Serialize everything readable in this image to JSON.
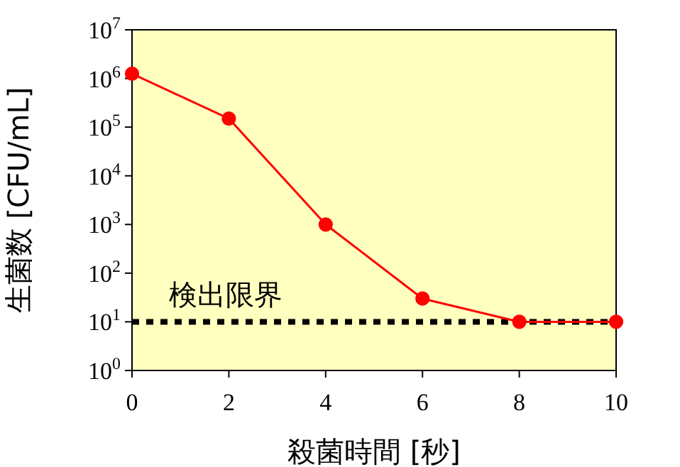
{
  "chart_data": {
    "type": "line",
    "xlabel": "殺菌時間 [秒]",
    "ylabel": "生菌数 [CFU/mL]",
    "x": [
      0,
      2,
      4,
      6,
      8,
      10
    ],
    "series": [
      {
        "color": "#ff0000",
        "values": [
          1250000,
          150000,
          1000,
          30,
          10,
          10
        ]
      }
    ],
    "log": "y",
    "xlim": [
      0,
      10
    ],
    "xticks": [
      0,
      2,
      4,
      6,
      8,
      10
    ],
    "ylim": [
      1,
      10000000
    ],
    "yticks": [
      {
        "value": 1,
        "label": "10$^{0}$"
      },
      {
        "value": 10,
        "label": "10$^{1}$"
      },
      {
        "value": 100,
        "label": "10$^{2}$"
      },
      {
        "value": 1000,
        "label": "10$^{3}$"
      },
      {
        "value": 10000,
        "label": "10$^{4}$"
      },
      {
        "value": 100000,
        "label": "10$^{5}$"
      },
      {
        "value": 1000000,
        "label": "10$^{6}$"
      },
      {
        "value": 10000000,
        "label": "10$^{7}$"
      }
    ],
    "ref_lines": [
      {
        "axis": "y",
        "value": 10,
        "label": "検出限界",
        "color": "#000000",
        "line_style": "dotted"
      }
    ],
    "marker": "circle",
    "grid": false
  }
}
